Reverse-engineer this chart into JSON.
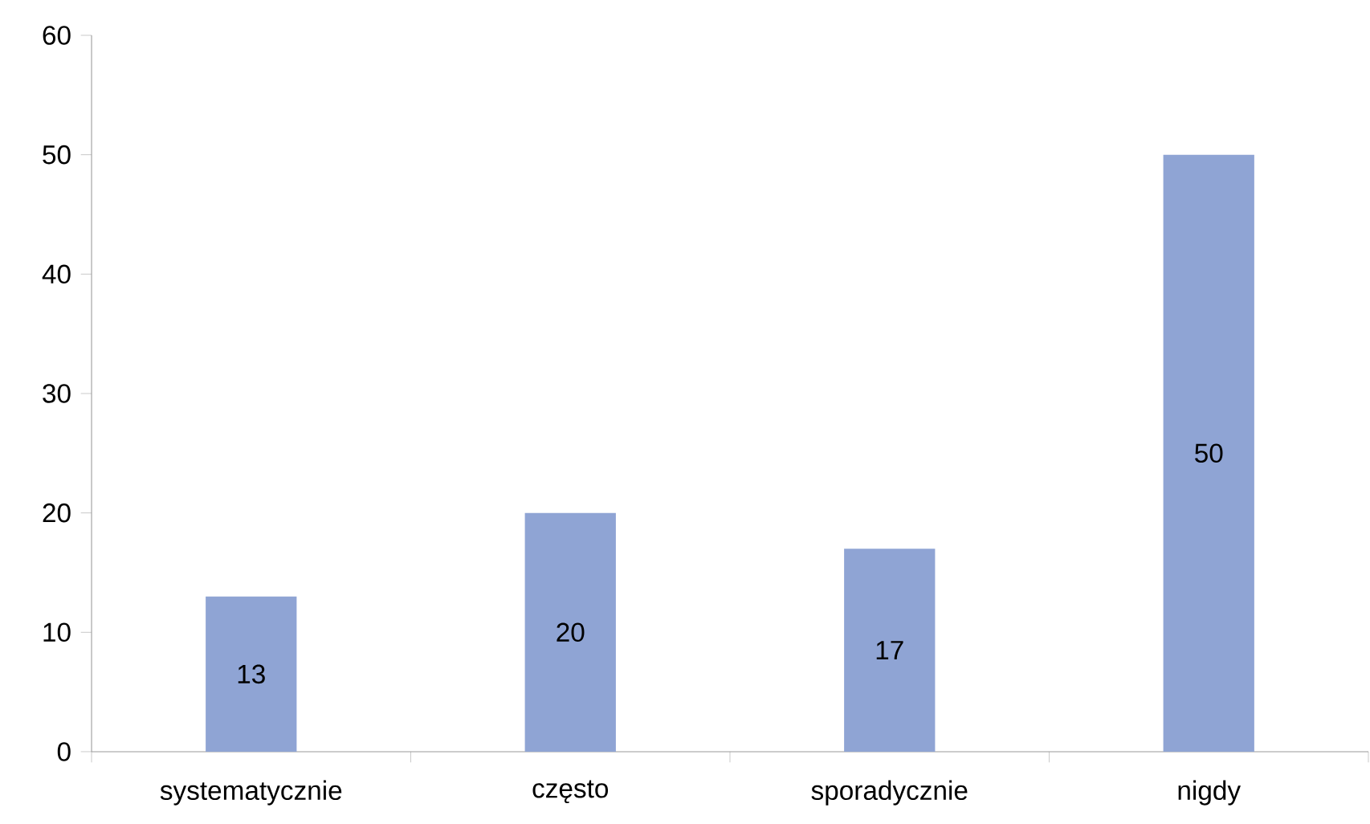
{
  "chart_data": {
    "type": "bar",
    "categories": [
      "systematycznie",
      "często",
      "sporadycznie",
      "nigdy"
    ],
    "values": [
      13,
      20,
      17,
      50
    ],
    "color": "#8fa4d4",
    "ylim": [
      0,
      60
    ],
    "yticks": [
      0,
      10,
      20,
      30,
      40,
      50,
      60
    ],
    "data_labels": true
  }
}
